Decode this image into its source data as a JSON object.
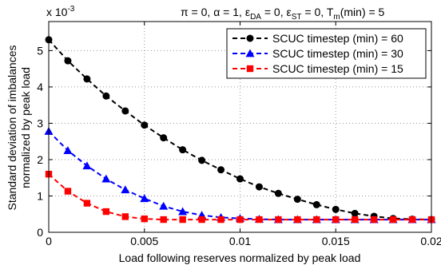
{
  "chart_data": {
    "type": "line",
    "title": {
      "pi": "π = 0, ",
      "alpha": "α = 1, ",
      "eps_da_sym": "ε",
      "eps_da_sub": "DA",
      "eps_da_rest": " = 0, ",
      "eps_st_sym": "ε",
      "eps_st_sub": "ST",
      "eps_st_rest": " = 0, ",
      "tm_sym": "T",
      "tm_sub": "m",
      "tm_rest": "(min) = 5"
    },
    "xlabel": "Load following reserves normalized by peak load",
    "ylabel_line1": "Standard deviation of imbalances",
    "ylabel_line2": "normalized by peak load",
    "y_multiplier_base": "x 10",
    "y_multiplier_exp": "-3",
    "xlim": [
      0,
      0.02
    ],
    "ylim": [
      0,
      5.8
    ],
    "grid": true,
    "legend_position": "top-right",
    "x_ticks": [
      {
        "value": 0,
        "label": "0"
      },
      {
        "value": 0.005,
        "label": "0.005"
      },
      {
        "value": 0.01,
        "label": "0.01"
      },
      {
        "value": 0.015,
        "label": "0.015"
      },
      {
        "value": 0.02,
        "label": "0.02"
      }
    ],
    "y_ticks": [
      {
        "value": 0,
        "label": "0"
      },
      {
        "value": 1,
        "label": "1"
      },
      {
        "value": 2,
        "label": "2"
      },
      {
        "value": 3,
        "label": "3"
      },
      {
        "value": 4,
        "label": "4"
      },
      {
        "value": 5,
        "label": "5"
      }
    ],
    "x": [
      0,
      0.001,
      0.002,
      0.003,
      0.004,
      0.005,
      0.006,
      0.007,
      0.008,
      0.009,
      0.01,
      0.011,
      0.012,
      0.013,
      0.014,
      0.015,
      0.016,
      0.017,
      0.018,
      0.019,
      0.02
    ],
    "series": [
      {
        "name": "SCUC timestep (min) = 60",
        "color": "#000000",
        "marker": "circle",
        "values": [
          5.3,
          4.72,
          4.22,
          3.75,
          3.34,
          2.95,
          2.6,
          2.27,
          1.98,
          1.72,
          1.47,
          1.25,
          1.07,
          0.91,
          0.76,
          0.63,
          0.52,
          0.44,
          0.38,
          0.36,
          0.35
        ]
      },
      {
        "name": "SCUC timestep (min) = 30",
        "color": "#0000ff",
        "marker": "triangle",
        "values": [
          2.78,
          2.25,
          1.83,
          1.47,
          1.17,
          0.93,
          0.72,
          0.57,
          0.47,
          0.41,
          0.38,
          0.36,
          0.35,
          0.35,
          0.35,
          0.35,
          0.35,
          0.35,
          0.35,
          0.35,
          0.35
        ]
      },
      {
        "name": "SCUC timestep (min) = 15",
        "color": "#ff0000",
        "marker": "square",
        "values": [
          1.6,
          1.13,
          0.8,
          0.57,
          0.43,
          0.37,
          0.35,
          0.35,
          0.35,
          0.35,
          0.35,
          0.35,
          0.35,
          0.35,
          0.35,
          0.35,
          0.35,
          0.35,
          0.35,
          0.35,
          0.35
        ]
      }
    ]
  }
}
